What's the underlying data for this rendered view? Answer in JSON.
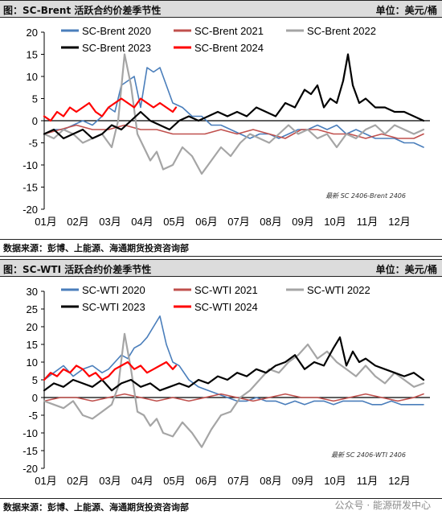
{
  "watermark": "公众号 · 能源研发中心",
  "panels": [
    {
      "header_title": "图：SC-Brent 活跃合约价差季节性",
      "unit": "单位：美元/桶",
      "source": "数据来源：彭博、上能源、海通期货投资咨询部",
      "note": "最新 SC 2406-Brent 2406",
      "chart_data": {
        "type": "line",
        "title": "图：SC-Brent 活跃合约价差季节性",
        "ylabel": "单位：美元/桶",
        "ylim": [
          -20,
          20
        ],
        "yticks": [
          -20,
          -15,
          -10,
          -5,
          0,
          5,
          10,
          15,
          20
        ],
        "categories": [
          "01月",
          "02月",
          "03月",
          "04月",
          "05月",
          "06月",
          "07月",
          "08月",
          "09月",
          "10月",
          "11月",
          "12月"
        ],
        "legend": "top, two rows",
        "series": [
          {
            "name": "SC-Brent 2020",
            "color": "#4a7ebb",
            "width": 1.6,
            "x": [
              1.0,
              1.3,
              1.6,
              1.9,
              2.2,
              2.5,
              2.8,
              3.0,
              3.2,
              3.4,
              3.6,
              3.8,
              4.0,
              4.2,
              4.4,
              4.6,
              4.8,
              5.0,
              5.3,
              5.6,
              5.9,
              6.2,
              6.5,
              6.8,
              7.1,
              7.4,
              7.7,
              8.0,
              8.3,
              8.6,
              8.9,
              9.2,
              9.5,
              9.8,
              10.1,
              10.4,
              10.7,
              11.0,
              11.3,
              11.6,
              11.9,
              12.2,
              12.5,
              12.8
            ],
            "y": [
              -3,
              -2,
              -2,
              -1,
              0,
              -1,
              1,
              3,
              2,
              8,
              9,
              10,
              3,
              12,
              11,
              12,
              8,
              4,
              3,
              1,
              1,
              -1,
              -1,
              -2,
              -3,
              -4,
              -3,
              -3,
              -4,
              -3,
              -2,
              -2,
              -1,
              -2,
              -1,
              -3,
              -2,
              -3,
              -4,
              -4,
              -4,
              -5,
              -5,
              -6
            ]
          },
          {
            "name": "SC-Brent 2021",
            "color": "#c0504d",
            "width": 1.6,
            "x": [
              1.0,
              1.5,
              2.0,
              2.5,
              3.0,
              3.5,
              4.0,
              4.5,
              5.0,
              5.5,
              6.0,
              6.5,
              7.0,
              7.5,
              8.0,
              8.5,
              9.0,
              9.5,
              10.0,
              10.5,
              11.0,
              11.5,
              12.0,
              12.5,
              12.8
            ],
            "y": [
              -3,
              -2,
              -1,
              -2,
              -2,
              -1,
              -2,
              -2,
              -3,
              -3,
              -3,
              -2,
              -3,
              -2,
              -3,
              -4,
              -2,
              -2,
              -3,
              -3,
              -4,
              -3,
              -4,
              -4,
              -3
            ]
          },
          {
            "name": "SC-Brent 2022",
            "color": "#a5a5a5",
            "width": 2.2,
            "x": [
              1.0,
              1.3,
              1.6,
              1.9,
              2.2,
              2.5,
              2.8,
              3.1,
              3.3,
              3.5,
              3.7,
              3.9,
              4.1,
              4.3,
              4.5,
              4.7,
              5.0,
              5.3,
              5.6,
              5.9,
              6.2,
              6.5,
              6.8,
              7.1,
              7.4,
              7.7,
              8.0,
              8.3,
              8.6,
              8.9,
              9.2,
              9.5,
              9.8,
              10.1,
              10.4,
              10.7,
              11.0,
              11.3,
              11.6,
              11.9,
              12.2,
              12.5,
              12.8
            ],
            "y": [
              -3,
              -4,
              -2,
              -3,
              -5,
              -4,
              -3,
              -6,
              0,
              15,
              8,
              -3,
              -6,
              -9,
              -7,
              -11,
              -10,
              -6,
              -8,
              -12,
              -9,
              -6,
              -8,
              -5,
              -3,
              -4,
              -5,
              -3,
              -1,
              -3,
              -2,
              -4,
              -3,
              -6,
              -3,
              -4,
              -2,
              -1,
              -3,
              -1,
              -2,
              -3,
              -2
            ]
          },
          {
            "name": "SC-Brent 2023",
            "color": "#000000",
            "width": 2.2,
            "x": [
              1.0,
              1.3,
              1.6,
              1.9,
              2.2,
              2.5,
              2.8,
              3.1,
              3.4,
              3.7,
              4.0,
              4.3,
              4.6,
              4.9,
              5.2,
              5.5,
              5.8,
              6.1,
              6.4,
              6.7,
              7.0,
              7.3,
              7.6,
              7.9,
              8.2,
              8.5,
              8.8,
              9.1,
              9.3,
              9.5,
              9.7,
              9.9,
              10.1,
              10.3,
              10.45,
              10.6,
              10.8,
              11.0,
              11.3,
              11.6,
              11.9,
              12.2,
              12.5,
              12.8
            ],
            "y": [
              -3,
              -2,
              -4,
              -3,
              -2,
              -4,
              -3,
              -1,
              -2,
              0,
              2,
              0,
              -1,
              -2,
              0,
              1,
              0,
              1,
              2,
              1,
              2,
              1,
              3,
              2,
              1,
              4,
              3,
              7,
              6,
              8,
              3,
              5,
              4,
              9,
              15,
              8,
              4,
              5,
              3,
              3,
              2,
              2,
              1,
              0
            ]
          },
          {
            "name": "SC-Brent 2024",
            "color": "#ff0000",
            "width": 2.2,
            "x": [
              1.0,
              1.2,
              1.4,
              1.6,
              1.8,
              2.0,
              2.2,
              2.4,
              2.6,
              2.8,
              3.0,
              3.2,
              3.4,
              3.6,
              3.8,
              4.0,
              4.2,
              4.4,
              4.6,
              4.8,
              5.0,
              5.1
            ],
            "y": [
              1,
              0,
              2,
              1,
              3,
              2,
              3,
              4,
              2,
              1,
              3,
              4,
              5,
              4,
              3,
              5,
              4,
              3,
              4,
              3,
              2,
              3
            ]
          }
        ]
      }
    },
    {
      "header_title": "图：SC-WTI 活跃合约价差季节性",
      "unit": "单位：美元/桶",
      "source": "数据来源：彭博、上能源、海通期货投资咨询部",
      "note": "最新 SC 2406-WTI 2406",
      "chart_data": {
        "type": "line",
        "title": "图：SC-WTI 活跃合约价差季节性",
        "ylabel": "单位：美元/桶",
        "ylim": [
          -20,
          30
        ],
        "yticks": [
          -20,
          -15,
          -10,
          -5,
          0,
          5,
          10,
          15,
          20,
          25,
          30
        ],
        "categories": [
          "01月",
          "02月",
          "03月",
          "04月",
          "05月",
          "06月",
          "07月",
          "08月",
          "09月",
          "10月",
          "11月",
          "12月"
        ],
        "legend": "top, two rows",
        "series": [
          {
            "name": "SC-WTI 2020",
            "color": "#4a7ebb",
            "width": 1.6,
            "x": [
              1.0,
              1.3,
              1.6,
              1.9,
              2.2,
              2.5,
              2.8,
              3.0,
              3.2,
              3.4,
              3.6,
              3.8,
              4.0,
              4.2,
              4.4,
              4.6,
              4.8,
              5.0,
              5.2,
              5.5,
              5.8,
              6.1,
              6.4,
              6.7,
              7.0,
              7.3,
              7.6,
              7.9,
              8.2,
              8.5,
              8.8,
              9.1,
              9.4,
              9.7,
              10.0,
              10.3,
              10.6,
              10.9,
              11.2,
              11.5,
              11.8,
              12.1,
              12.4,
              12.8
            ],
            "y": [
              5,
              7,
              9,
              6,
              8,
              9,
              7,
              8,
              10,
              12,
              11,
              14,
              15,
              17,
              20,
              23,
              15,
              10,
              9,
              5,
              3,
              2,
              1,
              0,
              -1,
              -1,
              0,
              -1,
              -1,
              -2,
              -1,
              -2,
              -1,
              -1,
              -2,
              -1,
              -1,
              -1,
              -2,
              -2,
              -1,
              -2,
              -2,
              -2
            ]
          },
          {
            "name": "SC-WTI 2021",
            "color": "#c0504d",
            "width": 1.6,
            "x": [
              1.0,
              1.5,
              2.0,
              2.5,
              3.0,
              3.5,
              4.0,
              4.5,
              5.0,
              5.5,
              6.0,
              6.5,
              7.0,
              7.5,
              8.0,
              8.5,
              9.0,
              9.5,
              10.0,
              10.5,
              11.0,
              11.5,
              12.0,
              12.5,
              12.8
            ],
            "y": [
              -1,
              0,
              0,
              -1,
              0,
              1,
              0,
              -1,
              0,
              -1,
              0,
              1,
              0,
              -1,
              0,
              1,
              0,
              0,
              -1,
              0,
              1,
              0,
              -1,
              0,
              1
            ]
          },
          {
            "name": "SC-WTI 2022",
            "color": "#a5a5a5",
            "width": 2.2,
            "x": [
              1.0,
              1.3,
              1.6,
              1.9,
              2.2,
              2.5,
              2.8,
              3.1,
              3.3,
              3.5,
              3.7,
              3.9,
              4.1,
              4.3,
              4.5,
              4.7,
              5.0,
              5.3,
              5.6,
              5.9,
              6.2,
              6.5,
              6.8,
              7.1,
              7.4,
              7.7,
              8.0,
              8.3,
              8.6,
              8.9,
              9.2,
              9.5,
              9.8,
              10.1,
              10.4,
              10.7,
              11.0,
              11.3,
              11.6,
              11.9,
              12.2,
              12.5,
              12.8
            ],
            "y": [
              -1,
              -2,
              -3,
              -1,
              -5,
              -6,
              -4,
              -2,
              3,
              18,
              8,
              -4,
              -5,
              -8,
              -6,
              -10,
              -11,
              -7,
              -10,
              -14,
              -9,
              -5,
              -4,
              0,
              2,
              5,
              8,
              7,
              10,
              12,
              15,
              11,
              13,
              10,
              8,
              6,
              9,
              6,
              4,
              7,
              5,
              3,
              4
            ]
          },
          {
            "name": "SC-WTI 2023",
            "color": "#000000",
            "width": 2.2,
            "x": [
              1.0,
              1.3,
              1.6,
              1.9,
              2.2,
              2.5,
              2.8,
              3.1,
              3.4,
              3.7,
              4.0,
              4.3,
              4.6,
              4.9,
              5.2,
              5.5,
              5.8,
              6.1,
              6.4,
              6.7,
              7.0,
              7.3,
              7.6,
              7.9,
              8.2,
              8.5,
              8.8,
              9.1,
              9.4,
              9.7,
              10.0,
              10.2,
              10.4,
              10.6,
              10.8,
              11.0,
              11.3,
              11.6,
              11.9,
              12.2,
              12.5,
              12.8
            ],
            "y": [
              2,
              4,
              3,
              5,
              4,
              3,
              5,
              2,
              4,
              5,
              3,
              4,
              2,
              3,
              4,
              3,
              5,
              4,
              6,
              5,
              7,
              6,
              8,
              7,
              9,
              10,
              12,
              8,
              10,
              9,
              14,
              17,
              9,
              13,
              10,
              11,
              9,
              8,
              7,
              6,
              7,
              5
            ]
          },
          {
            "name": "SC-WTI 2024",
            "color": "#ff0000",
            "width": 2.2,
            "x": [
              1.0,
              1.2,
              1.4,
              1.6,
              1.8,
              2.0,
              2.2,
              2.4,
              2.6,
              2.8,
              3.0,
              3.2,
              3.4,
              3.6,
              3.8,
              4.0,
              4.2,
              4.4,
              4.6,
              4.8,
              5.0,
              5.1
            ],
            "y": [
              5,
              7,
              6,
              8,
              7,
              9,
              8,
              6,
              7,
              5,
              6,
              8,
              9,
              10,
              8,
              9,
              7,
              8,
              9,
              10,
              8,
              9
            ]
          }
        ]
      }
    }
  ]
}
